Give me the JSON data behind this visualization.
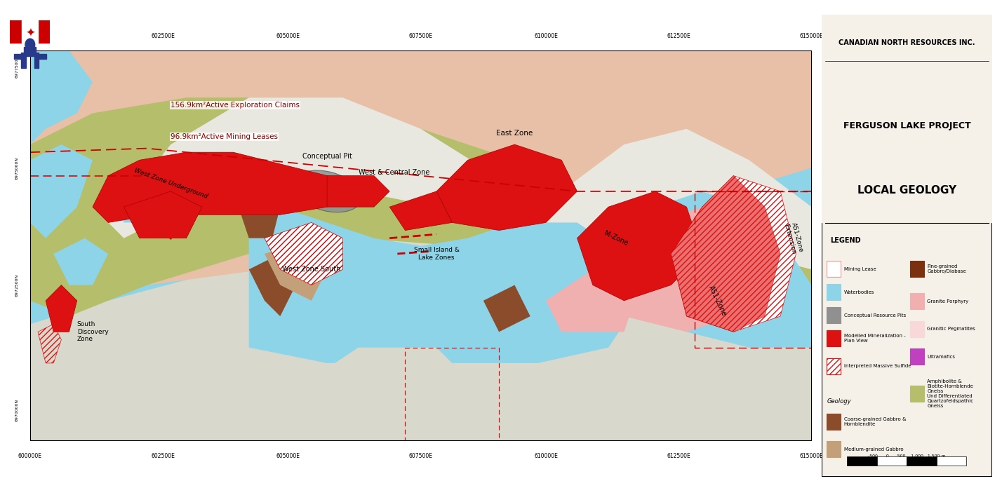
{
  "company": "CANADIAN NORTH RESOURCES INC.",
  "project": "FERGUSON LAKE PROJECT",
  "geology": "LOCAL GEOLOGY",
  "fig_width": 14.28,
  "fig_height": 7.16,
  "annotations": {
    "exploration_claims": "156.9km²Active Exploration Claims",
    "mining_leases": "96.9km²Active Mining Leases",
    "conceptual_pit": "Conceptual Pit",
    "west_central": "West & Central Zone",
    "west_underground": "West Zone Underground",
    "west_south": "West Zone South",
    "east_zone": "East Zone",
    "m_zone": "M-Zone",
    "a51_zone": "A51-Zone",
    "a51_ext": "A51-Zone\nExtension",
    "small_island": "Small Island &\nLake Zones",
    "south_discovery": "South\nDiscovery\nZone"
  },
  "colors": {
    "water": "#8dd4e8",
    "land_green": "#b5be6a",
    "land_pink": "#e8c0a8",
    "land_gray": "#c8c8b8",
    "undiff_gneiss": "#d8d8cc",
    "white_band": "#e8e8e0",
    "gabbro_brown": "#8b4c2c",
    "medium_gabbro": "#c4a07a",
    "granite_porphyry": "#f0b0b0",
    "pegmatite": "#f8d8d8",
    "ultramafic": "#c040c0",
    "fine_gabbro": "#7b3010",
    "mineralization_red": "#dd1111",
    "pit_gray": "#909090",
    "dashed_red": "#cc0000",
    "legend_bg": "#f5f0e8",
    "border": "#000000"
  }
}
